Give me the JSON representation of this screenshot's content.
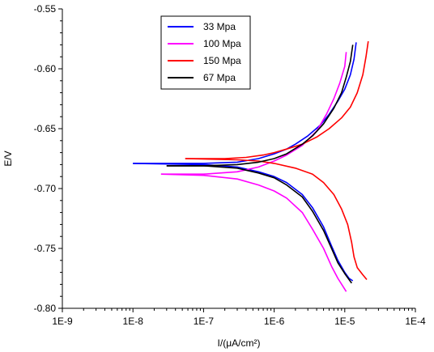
{
  "chart_data": {
    "type": "line",
    "xlabel": "I/(μA/cm²)",
    "ylabel": "E/V",
    "x_scale": "log",
    "xlim": [
      1e-09,
      0.0001
    ],
    "ylim": [
      -0.8,
      -0.55
    ],
    "x_ticks": [
      {
        "value": 1e-09,
        "label": "1E-9"
      },
      {
        "value": 1e-08,
        "label": "1E-8"
      },
      {
        "value": 1e-07,
        "label": "1E-7"
      },
      {
        "value": 1e-06,
        "label": "1E-6"
      },
      {
        "value": 1e-05,
        "label": "1E-5"
      },
      {
        "value": 0.0001,
        "label": "1E-4"
      }
    ],
    "y_ticks": [
      {
        "value": -0.55,
        "label": "-0.55"
      },
      {
        "value": -0.6,
        "label": "-0.60"
      },
      {
        "value": -0.65,
        "label": "-0.65"
      },
      {
        "value": -0.7,
        "label": "-0.70"
      },
      {
        "value": -0.75,
        "label": "-0.75"
      },
      {
        "value": -0.8,
        "label": "-0.80"
      }
    ],
    "grid": false,
    "legend_position": "top-left-inside",
    "series": [
      {
        "name": "33 Mpa",
        "color": "#0000ff",
        "anodic": [
          [
            1e-08,
            -0.679
          ],
          [
            3e-08,
            -0.679
          ],
          [
            1e-07,
            -0.679
          ],
          [
            3e-07,
            -0.678
          ],
          [
            6e-07,
            -0.675
          ],
          [
            1e-06,
            -0.671
          ],
          [
            1.5e-06,
            -0.667
          ],
          [
            2e-06,
            -0.663
          ],
          [
            3e-06,
            -0.656
          ],
          [
            4.5e-06,
            -0.647
          ],
          [
            6e-06,
            -0.638
          ],
          [
            8e-06,
            -0.627
          ],
          [
            1e-05,
            -0.617
          ],
          [
            1.2e-05,
            -0.605
          ],
          [
            1.35e-05,
            -0.592
          ],
          [
            1.45e-05,
            -0.578
          ]
        ],
        "cathodic": [
          [
            1e-08,
            -0.679
          ],
          [
            1e-07,
            -0.68
          ],
          [
            3e-07,
            -0.682
          ],
          [
            6e-07,
            -0.686
          ],
          [
            1e-06,
            -0.69
          ],
          [
            1.5e-06,
            -0.695
          ],
          [
            2.5e-06,
            -0.705
          ],
          [
            3.5e-06,
            -0.716
          ],
          [
            5e-06,
            -0.732
          ],
          [
            6.5e-06,
            -0.748
          ],
          [
            8e-06,
            -0.76
          ],
          [
            1e-05,
            -0.77
          ],
          [
            1.15e-05,
            -0.775
          ],
          [
            1.3e-05,
            -0.777
          ]
        ]
      },
      {
        "name": "100 Mpa",
        "color": "#ff00ff",
        "anodic": [
          [
            2.5e-08,
            -0.688
          ],
          [
            1e-07,
            -0.688
          ],
          [
            3e-07,
            -0.686
          ],
          [
            6e-07,
            -0.682
          ],
          [
            1e-06,
            -0.677
          ],
          [
            1.5e-06,
            -0.672
          ],
          [
            2.5e-06,
            -0.664
          ],
          [
            4e-06,
            -0.652
          ],
          [
            5.5e-06,
            -0.638
          ],
          [
            7e-06,
            -0.625
          ],
          [
            8.5e-06,
            -0.612
          ],
          [
            1e-05,
            -0.598
          ],
          [
            1.05e-05,
            -0.586
          ]
        ],
        "cathodic": [
          [
            2.5e-08,
            -0.688
          ],
          [
            1e-07,
            -0.689
          ],
          [
            3e-07,
            -0.692
          ],
          [
            6e-07,
            -0.697
          ],
          [
            1e-06,
            -0.702
          ],
          [
            1.5e-06,
            -0.708
          ],
          [
            2.5e-06,
            -0.72
          ],
          [
            3.5e-06,
            -0.734
          ],
          [
            5e-06,
            -0.75
          ],
          [
            6.5e-06,
            -0.765
          ],
          [
            8e-06,
            -0.775
          ],
          [
            9.5e-06,
            -0.782
          ],
          [
            1.05e-05,
            -0.786
          ]
        ]
      },
      {
        "name": "150 Mpa",
        "color": "#ff0000",
        "anodic": [
          [
            5.5e-08,
            -0.675
          ],
          [
            2e-07,
            -0.675
          ],
          [
            4e-07,
            -0.674
          ],
          [
            7e-07,
            -0.672
          ],
          [
            1e-06,
            -0.67
          ],
          [
            1.5e-06,
            -0.667
          ],
          [
            2.5e-06,
            -0.663
          ],
          [
            4e-06,
            -0.657
          ],
          [
            6e-06,
            -0.65
          ],
          [
            9e-06,
            -0.641
          ],
          [
            1.2e-05,
            -0.632
          ],
          [
            1.5e-05,
            -0.62
          ],
          [
            1.8e-05,
            -0.605
          ],
          [
            2e-05,
            -0.59
          ],
          [
            2.15e-05,
            -0.577
          ]
        ],
        "cathodic": [
          [
            5.5e-08,
            -0.675
          ],
          [
            3e-07,
            -0.676
          ],
          [
            6e-07,
            -0.677
          ],
          [
            1e-06,
            -0.679
          ],
          [
            2e-06,
            -0.683
          ],
          [
            3.5e-06,
            -0.688
          ],
          [
            5e-06,
            -0.695
          ],
          [
            7e-06,
            -0.705
          ],
          [
            9e-06,
            -0.717
          ],
          [
            1.1e-05,
            -0.73
          ],
          [
            1.25e-05,
            -0.745
          ],
          [
            1.35e-05,
            -0.757
          ],
          [
            1.5e-05,
            -0.766
          ],
          [
            1.8e-05,
            -0.772
          ],
          [
            2.05e-05,
            -0.776
          ]
        ]
      },
      {
        "name": "67 Mpa",
        "color": "#000000",
        "anodic": [
          [
            3e-08,
            -0.681
          ],
          [
            1e-07,
            -0.681
          ],
          [
            3e-07,
            -0.68
          ],
          [
            6e-07,
            -0.678
          ],
          [
            1e-06,
            -0.675
          ],
          [
            1.5e-06,
            -0.671
          ],
          [
            2.5e-06,
            -0.663
          ],
          [
            3.5e-06,
            -0.656
          ],
          [
            5e-06,
            -0.646
          ],
          [
            7e-06,
            -0.633
          ],
          [
            9e-06,
            -0.62
          ],
          [
            1.05e-05,
            -0.607
          ],
          [
            1.2e-05,
            -0.594
          ],
          [
            1.3e-05,
            -0.58
          ]
        ],
        "cathodic": [
          [
            3e-08,
            -0.681
          ],
          [
            1e-07,
            -0.681
          ],
          [
            3e-07,
            -0.683
          ],
          [
            6e-07,
            -0.687
          ],
          [
            1e-06,
            -0.691
          ],
          [
            1.5e-06,
            -0.697
          ],
          [
            2.5e-06,
            -0.707
          ],
          [
            3.5e-06,
            -0.719
          ],
          [
            5e-06,
            -0.735
          ],
          [
            6.5e-06,
            -0.75
          ],
          [
            8e-06,
            -0.762
          ],
          [
            1e-05,
            -0.771
          ],
          [
            1.15e-05,
            -0.776
          ],
          [
            1.25e-05,
            -0.779
          ]
        ]
      }
    ]
  }
}
